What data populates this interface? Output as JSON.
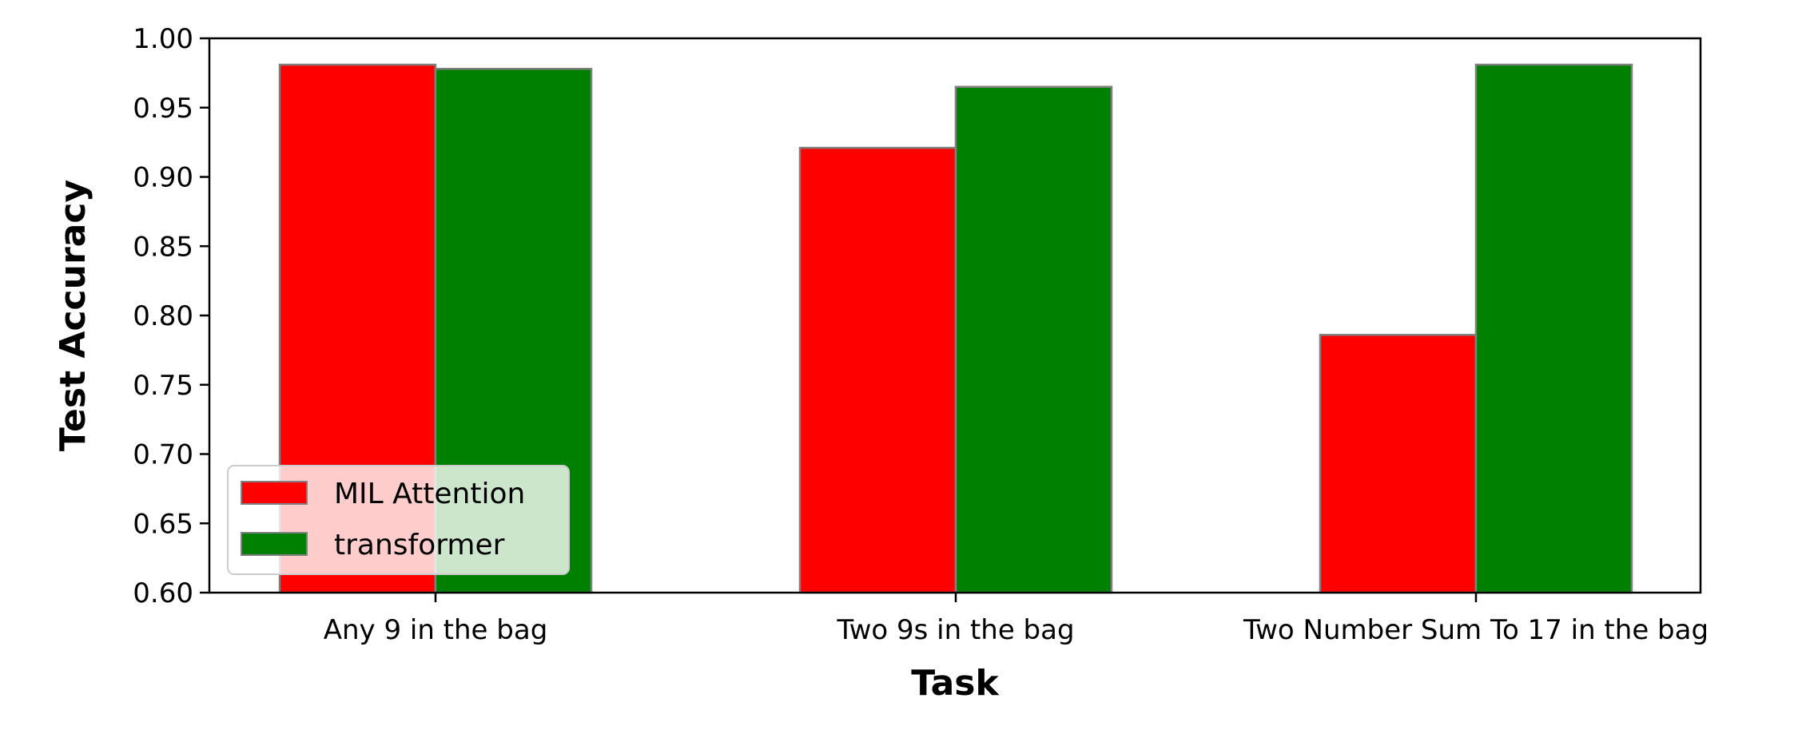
{
  "chart_data": {
    "type": "bar",
    "title": "",
    "xlabel": "Task",
    "ylabel": "Test Accuracy",
    "ylim": [
      0.6,
      1.0
    ],
    "yticks": [
      "0.60",
      "0.65",
      "0.70",
      "0.75",
      "0.80",
      "0.85",
      "0.90",
      "0.95",
      "1.00"
    ],
    "categories": [
      "Any 9 in the bag",
      "Two 9s in the bag",
      "Two Number Sum To 17 in the bag"
    ],
    "series": [
      {
        "name": "MIL Attention",
        "color": "#ff0000",
        "values": [
          0.981,
          0.921,
          0.786
        ]
      },
      {
        "name": "transformer",
        "color": "#008000",
        "values": [
          0.978,
          0.965,
          0.981
        ]
      }
    ],
    "legend": {
      "position": "lower-left"
    },
    "grid": false,
    "bar_edge_color": "#808080"
  }
}
